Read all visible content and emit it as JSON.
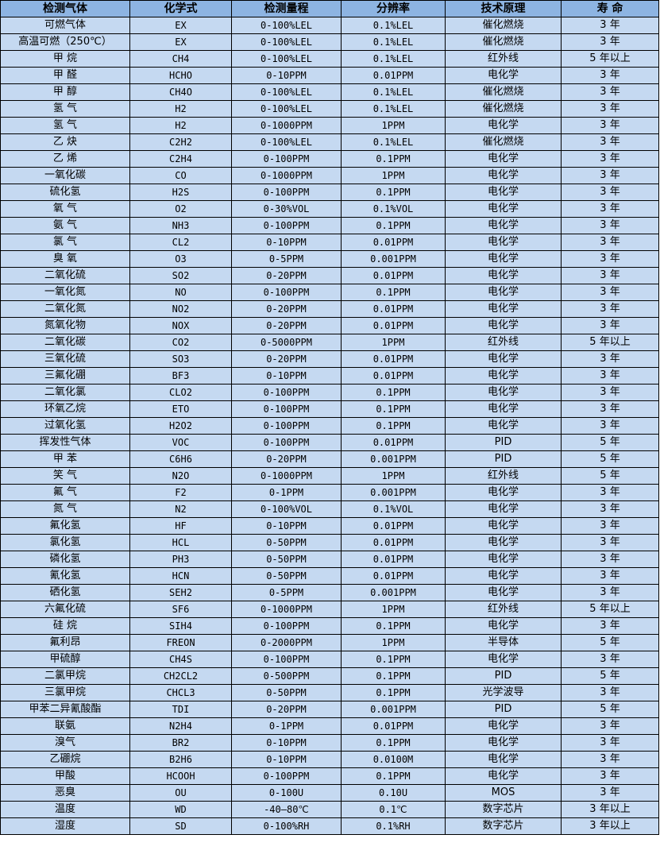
{
  "colors": {
    "header_bg": "#8db4e2",
    "row_bg": "#c5d9f1",
    "border": "#000000"
  },
  "table": {
    "headers": [
      "检测气体",
      "化学式",
      "检测量程",
      "分辨率",
      "技术原理",
      "寿 命"
    ],
    "rows": [
      [
        "可燃气体",
        "EX",
        "0-100%LEL",
        "0.1%LEL",
        "催化燃烧",
        "3 年"
      ],
      [
        "高温可燃（250℃）",
        "EX",
        "0-100%LEL",
        "0.1%LEL",
        "催化燃烧",
        "3 年"
      ],
      [
        "甲 烷",
        "CH4",
        "0-100%LEL",
        "0.1%LEL",
        "红外线",
        "5 年以上"
      ],
      [
        "甲 醛",
        "HCHO",
        "0-10PPM",
        "0.01PPM",
        "电化学",
        "3 年"
      ],
      [
        "甲 醇",
        "CH4O",
        "0-100%LEL",
        "0.1%LEL",
        "催化燃烧",
        "3 年"
      ],
      [
        "氢 气",
        "H2",
        "0-100%LEL",
        "0.1%LEL",
        "催化燃烧",
        "3 年"
      ],
      [
        "氢 气",
        "H2",
        "0-1000PPM",
        "1PPM",
        "电化学",
        "3 年"
      ],
      [
        "乙 炔",
        "C2H2",
        "0-100%LEL",
        "0.1%LEL",
        "催化燃烧",
        "3 年"
      ],
      [
        "乙 烯",
        "C2H4",
        "0-100PPM",
        "0.1PPM",
        "电化学",
        "3 年"
      ],
      [
        "一氧化碳",
        "CO",
        "0-1000PPM",
        "1PPM",
        "电化学",
        "3 年"
      ],
      [
        "硫化氢",
        "H2S",
        "0-100PPM",
        "0.1PPM",
        "电化学",
        "3 年"
      ],
      [
        "氧 气",
        "O2",
        "0-30%VOL",
        "0.1%VOL",
        "电化学",
        "3 年"
      ],
      [
        "氨 气",
        "NH3",
        "0-100PPM",
        "0.1PPM",
        "电化学",
        "3 年"
      ],
      [
        "氯 气",
        "CL2",
        "0-10PPM",
        "0.01PPM",
        "电化学",
        "3 年"
      ],
      [
        "臭 氧",
        "O3",
        "0-5PPM",
        "0.001PPM",
        "电化学",
        "3 年"
      ],
      [
        "二氧化硫",
        "SO2",
        "0-20PPM",
        "0.01PPM",
        "电化学",
        "3 年"
      ],
      [
        "一氧化氮",
        "NO",
        "0-100PPM",
        "0.1PPM",
        "电化学",
        "3 年"
      ],
      [
        "二氧化氮",
        "NO2",
        "0-20PPM",
        "0.01PPM",
        "电化学",
        "3 年"
      ],
      [
        "氮氧化物",
        "NOX",
        "0-20PPM",
        "0.01PPM",
        "电化学",
        "3 年"
      ],
      [
        "二氧化碳",
        "CO2",
        "0-5000PPM",
        "1PPM",
        "红外线",
        "5 年以上"
      ],
      [
        "三氧化硫",
        "SO3",
        "0-20PPM",
        "0.01PPM",
        "电化学",
        "3 年"
      ],
      [
        "三氟化硼",
        "BF3",
        "0-10PPM",
        "0.01PPM",
        "电化学",
        "3 年"
      ],
      [
        "二氧化氯",
        "CLO2",
        "0-100PPM",
        "0.1PPM",
        "电化学",
        "3 年"
      ],
      [
        "环氧乙烷",
        "ETO",
        "0-100PPM",
        "0.1PPM",
        "电化学",
        "3 年"
      ],
      [
        "过氧化氢",
        "H2O2",
        "0-100PPM",
        "0.1PPM",
        "电化学",
        "3 年"
      ],
      [
        "挥发性气体",
        "VOC",
        "0-100PPM",
        "0.01PPM",
        "PID",
        "5 年"
      ],
      [
        "甲 苯",
        "C6H6",
        "0-20PPM",
        "0.001PPM",
        "PID",
        "5 年"
      ],
      [
        "笑 气",
        "N2O",
        "0-1000PPM",
        "1PPM",
        "红外线",
        "5 年"
      ],
      [
        "氟 气",
        "F2",
        "0-1PPM",
        "0.001PPM",
        "电化学",
        "3 年"
      ],
      [
        "氮 气",
        "N2",
        "0-100%VOL",
        "0.1%VOL",
        "电化学",
        "3 年"
      ],
      [
        "氟化氢",
        "HF",
        "0-10PPM",
        "0.01PPM",
        "电化学",
        "3 年"
      ],
      [
        "氯化氢",
        "HCL",
        "0-50PPM",
        "0.01PPM",
        "电化学",
        "3 年"
      ],
      [
        "磷化氢",
        "PH3",
        "0-50PPM",
        "0.01PPM",
        "电化学",
        "3 年"
      ],
      [
        "氰化氢",
        "HCN",
        "0-50PPM",
        "0.01PPM",
        "电化学",
        "3 年"
      ],
      [
        "硒化氢",
        "SEH2",
        "0-5PPM",
        "0.001PPM",
        "电化学",
        "3 年"
      ],
      [
        "六氟化硫",
        "SF6",
        "0-1000PPM",
        "1PPM",
        "红外线",
        "5 年以上"
      ],
      [
        "硅 烷",
        "SIH4",
        "0-100PPM",
        "0.1PPM",
        "电化学",
        "3 年"
      ],
      [
        "氟利昂",
        "FREON",
        "0-2000PPM",
        "1PPM",
        "半导体",
        "5 年"
      ],
      [
        "甲硫醇",
        "CH4S",
        "0-100PPM",
        "0.1PPM",
        "电化学",
        "3 年"
      ],
      [
        "二氯甲烷",
        "CH2CL2",
        "0-500PPM",
        "0.1PPM",
        "PID",
        "5 年"
      ],
      [
        "三氯甲烷",
        "CHCL3",
        "0-50PPM",
        "0.1PPM",
        "光学波导",
        "3 年"
      ],
      [
        "甲苯二异氰酸酯",
        "TDI",
        "0-20PPM",
        "0.001PPM",
        "PID",
        "5 年"
      ],
      [
        "联氨",
        "N2H4",
        "0-1PPM",
        "0.01PPM",
        "电化学",
        "3 年"
      ],
      [
        "溴气",
        "BR2",
        "0-10PPM",
        "0.1PPM",
        "电化学",
        "3 年"
      ],
      [
        "乙硼烷",
        "B2H6",
        "0-10PPM",
        "0.0100M",
        "电化学",
        "3 年"
      ],
      [
        "甲酸",
        "HCOOH",
        "0-100PPM",
        "0.1PPM",
        "电化学",
        "3 年"
      ],
      [
        "恶臭",
        "OU",
        "0-100U",
        "0.10U",
        "MOS",
        "3 年"
      ],
      [
        "温度",
        "WD",
        "-40—80℃",
        "0.1℃",
        "数字芯片",
        "3 年以上"
      ],
      [
        "湿度",
        "SD",
        "0-100%RH",
        "0.1%RH",
        "数字芯片",
        "3 年以上"
      ]
    ]
  }
}
